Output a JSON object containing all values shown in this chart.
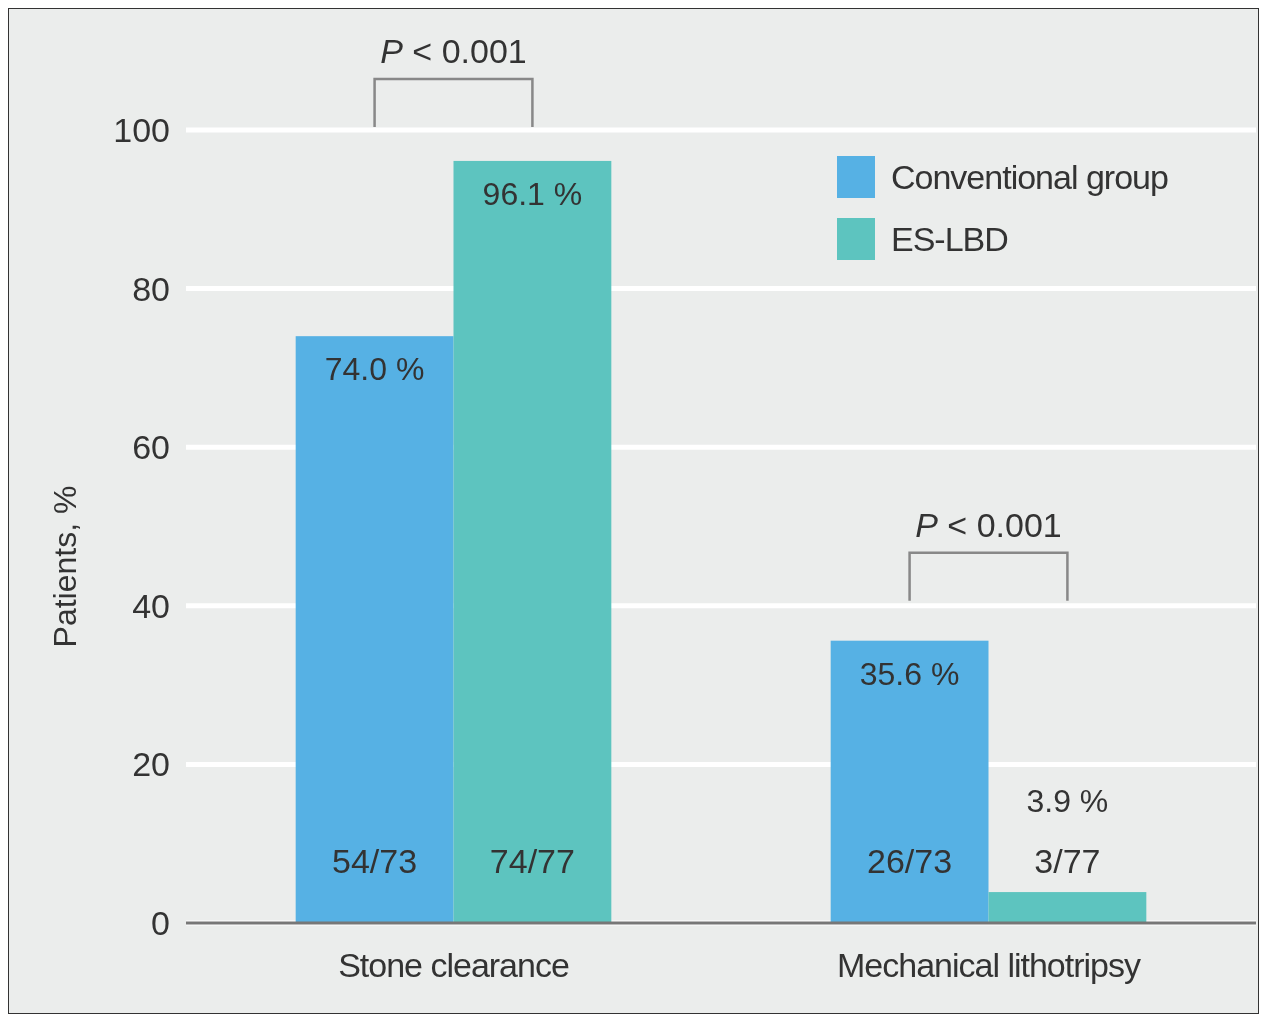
{
  "chart_data": {
    "type": "bar",
    "ylabel": "Patients, %",
    "categories": [
      "Stone clearance",
      "Mechanical lithotripsy"
    ],
    "series": [
      {
        "name": "Conventional group",
        "color": "#56b1e4",
        "values": [
          74.0,
          35.6
        ],
        "value_labels": [
          "74.0 %",
          "35.6 %"
        ]
      },
      {
        "name": "ES-LBD",
        "color": "#5dc4bf",
        "values": [
          96.1,
          3.9
        ],
        "value_labels": [
          "96.1 %",
          "3.9 %"
        ]
      }
    ],
    "ylim": [
      0,
      100
    ],
    "yticks": [
      0,
      20,
      40,
      60,
      80,
      100
    ],
    "grid": "y",
    "legend": "top right",
    "annotations": [
      "P < 0.001",
      "P < 0.001",
      {
        "text": "54/73",
        "x": "Stone clearance",
        "y": 7.8
      },
      {
        "text": "74/77",
        "x": "Stone clearance",
        "y": 7.8
      },
      {
        "text": "26/73",
        "x": "Mechanical lithotripsy",
        "y": 7.8
      },
      {
        "text": "3/77",
        "x": "Mechanical lithotripsy",
        "y": 7.8
      }
    ]
  }
}
